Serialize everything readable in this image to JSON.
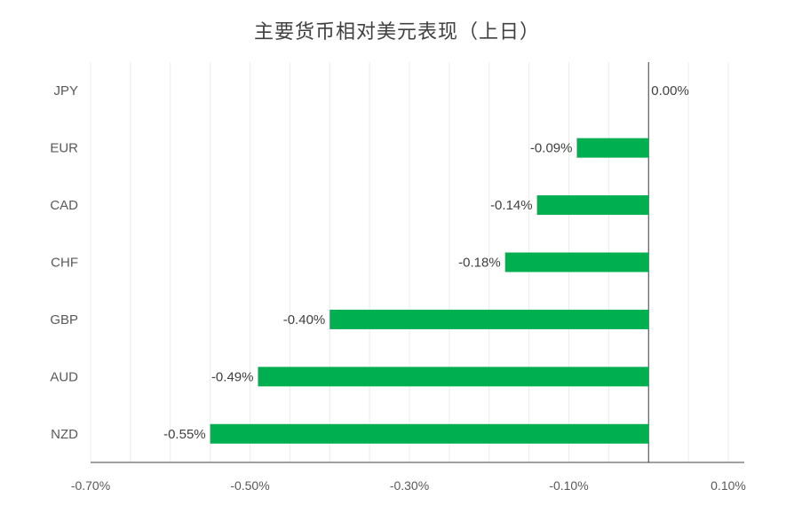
{
  "chart_data": {
    "type": "bar",
    "orientation": "horizontal",
    "title": "主要货币相对美元表现（上日）",
    "categories": [
      "JPY",
      "EUR",
      "CAD",
      "CHF",
      "GBP",
      "AUD",
      "NZD"
    ],
    "values": [
      0.0,
      -0.09,
      -0.14,
      -0.18,
      -0.4,
      -0.49,
      -0.55
    ],
    "data_labels": [
      "0.00%",
      "-0.09%",
      "-0.14%",
      "-0.18%",
      "-0.40%",
      "-0.49%",
      "-0.55%"
    ],
    "xlim": [
      -0.7,
      0.1
    ],
    "xticks": [
      -0.7,
      -0.5,
      -0.3,
      -0.1,
      0.1
    ],
    "xtick_labels": [
      "-0.70%",
      "-0.50%",
      "-0.30%",
      "-0.10%",
      "0.10%"
    ],
    "grid": true,
    "legend": "none",
    "bar_color": "#00b050"
  }
}
